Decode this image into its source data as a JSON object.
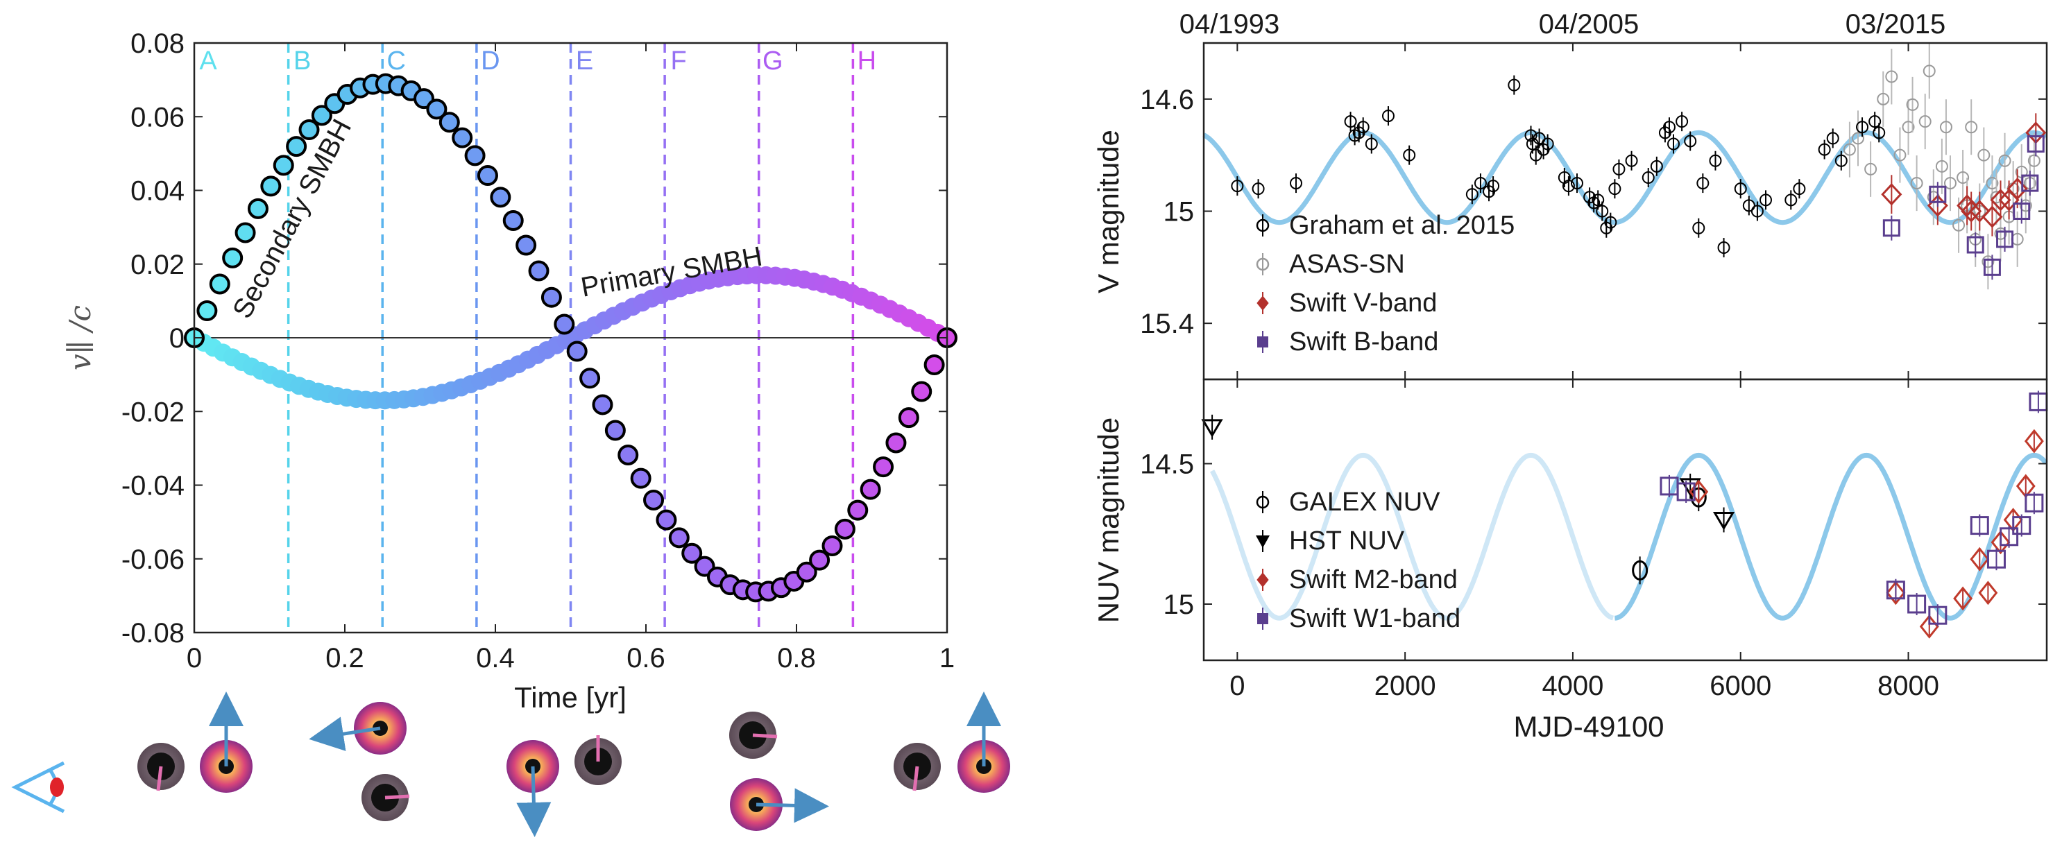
{
  "chart_data": [
    {
      "type": "scatter",
      "title": "",
      "xlabel": "Time [yr]",
      "ylabel": "v∥ /c",
      "xlim": [
        0,
        1
      ],
      "ylim": [
        -0.08,
        0.08
      ],
      "xticks": [
        "0",
        "0.2",
        "0.4",
        "0.6",
        "0.8",
        "1"
      ],
      "yticks": [
        "0.08",
        "0.06",
        "0.04",
        "0.02",
        "0",
        "-0.02",
        "-0.04",
        "-0.06",
        "-0.08"
      ],
      "phase_lines": [
        {
          "label": "A",
          "x": 0.0,
          "color": "#5ee0ee"
        },
        {
          "label": "B",
          "x": 0.125,
          "color": "#55d3ea"
        },
        {
          "label": "C",
          "x": 0.25,
          "color": "#5ab4ee"
        },
        {
          "label": "D",
          "x": 0.375,
          "color": "#6a96f0"
        },
        {
          "label": "E",
          "x": 0.5,
          "color": "#7f86f2"
        },
        {
          "label": "F",
          "x": 0.625,
          "color": "#9570f3"
        },
        {
          "label": "G",
          "x": 0.75,
          "color": "#ab5cf2"
        },
        {
          "label": "H",
          "x": 0.875,
          "color": "#c94cee"
        }
      ],
      "series": [
        {
          "name": "Secondary SMBH",
          "label": "Secondary SMBH",
          "amplitude": 0.069,
          "phase_sign": 1,
          "points": 60,
          "outlined": true
        },
        {
          "name": "Primary SMBH",
          "label": "Primary SMBH",
          "amplitude": 0.017,
          "phase_sign": -1,
          "points": 80,
          "outlined": false
        }
      ]
    },
    {
      "type": "scatter",
      "top_axis_labels": [
        "04/1993",
        "04/2005",
        "03/2015"
      ],
      "xlabel": "MJD-49100",
      "xlim": [
        -400,
        9650
      ],
      "xticks": [
        "0",
        "2000",
        "4000",
        "6000",
        "8000"
      ],
      "panels": [
        {
          "name": "V-band",
          "ylabel": "V magnitude",
          "ylim": [
            15.6,
            14.4
          ],
          "yticks": [
            "14.6",
            "15",
            "15.4"
          ],
          "model": {
            "period": 2000,
            "center": 14.88,
            "amplitude": 0.16,
            "peak_at": 3500,
            "color": "#8cc8ea"
          },
          "legend": [
            "Graham et al. 2015",
            "ASAS-SN",
            "Swift V-band",
            "Swift B-band"
          ],
          "graham": [
            [
              0,
              14.91
            ],
            [
              250,
              14.92
            ],
            [
              700,
              14.9
            ],
            [
              1350,
              14.68
            ],
            [
              1400,
              14.73
            ],
            [
              1450,
              14.72
            ],
            [
              1500,
              14.7
            ],
            [
              1600,
              14.76
            ],
            [
              1800,
              14.66
            ],
            [
              2050,
              14.8
            ],
            [
              2800,
              14.94
            ],
            [
              2900,
              14.9
            ],
            [
              3000,
              14.93
            ],
            [
              3050,
              14.91
            ],
            [
              3300,
              14.55
            ],
            [
              3500,
              14.73
            ],
            [
              3520,
              14.76
            ],
            [
              3560,
              14.8
            ],
            [
              3600,
              14.74
            ],
            [
              3650,
              14.78
            ],
            [
              3700,
              14.76
            ],
            [
              3900,
              14.88
            ],
            [
              3950,
              14.91
            ],
            [
              4050,
              14.9
            ],
            [
              4200,
              14.95
            ],
            [
              4250,
              14.97
            ],
            [
              4300,
              14.96
            ],
            [
              4350,
              15.0
            ],
            [
              4400,
              15.06
            ],
            [
              4450,
              15.04
            ],
            [
              4500,
              14.92
            ],
            [
              4550,
              14.85
            ],
            [
              4700,
              14.82
            ],
            [
              4900,
              14.88
            ],
            [
              5000,
              14.84
            ],
            [
              5100,
              14.72
            ],
            [
              5150,
              14.7
            ],
            [
              5200,
              14.76
            ],
            [
              5300,
              14.68
            ],
            [
              5400,
              14.75
            ],
            [
              5500,
              15.06
            ],
            [
              5550,
              14.9
            ],
            [
              5700,
              14.82
            ],
            [
              5800,
              15.13
            ],
            [
              6000,
              14.92
            ],
            [
              6100,
              14.98
            ],
            [
              6200,
              15.0
            ],
            [
              6300,
              14.96
            ],
            [
              6600,
              14.96
            ],
            [
              6700,
              14.92
            ],
            [
              7000,
              14.78
            ],
            [
              7100,
              14.74
            ],
            [
              7200,
              14.82
            ],
            [
              7450,
              14.7
            ],
            [
              7600,
              14.68
            ],
            [
              7650,
              14.72
            ]
          ],
          "asas_sn": [
            [
              7300,
              14.78
            ],
            [
              7400,
              14.74
            ],
            [
              7550,
              14.85
            ],
            [
              7700,
              14.6
            ],
            [
              7800,
              14.52
            ],
            [
              7900,
              14.8
            ],
            [
              8000,
              14.7
            ],
            [
              8050,
              14.62
            ],
            [
              8100,
              14.9
            ],
            [
              8200,
              14.68
            ],
            [
              8250,
              14.5
            ],
            [
              8300,
              14.95
            ],
            [
              8400,
              14.84
            ],
            [
              8450,
              14.7
            ],
            [
              8500,
              14.9
            ],
            [
              8600,
              15.05
            ],
            [
              8650,
              14.88
            ],
            [
              8700,
              14.98
            ],
            [
              8750,
              14.7
            ],
            [
              8800,
              15.1
            ],
            [
              8850,
              15.0
            ],
            [
              8900,
              14.8
            ],
            [
              8950,
              15.18
            ],
            [
              9000,
              14.9
            ],
            [
              9050,
              14.95
            ],
            [
              9100,
              15.08
            ],
            [
              9150,
              14.82
            ],
            [
              9200,
              15.02
            ],
            [
              9250,
              14.92
            ],
            [
              9300,
              15.1
            ],
            [
              9350,
              14.86
            ],
            [
              9400,
              14.98
            ],
            [
              9450,
              14.9
            ],
            [
              9500,
              14.82
            ]
          ],
          "swift_v": [
            [
              7800,
              14.94
            ],
            [
              8350,
              14.98
            ],
            [
              8700,
              14.98
            ],
            [
              8750,
              15.0
            ],
            [
              8850,
              15.0
            ],
            [
              9000,
              15.02
            ],
            [
              9100,
              14.96
            ],
            [
              9200,
              14.96
            ],
            [
              9300,
              14.92
            ],
            [
              9520,
              14.72
            ]
          ],
          "swift_b": [
            [
              7800,
              15.06
            ],
            [
              8350,
              14.94
            ],
            [
              8800,
              15.12
            ],
            [
              9000,
              15.2
            ],
            [
              9150,
              15.1
            ],
            [
              9350,
              15.0
            ],
            [
              9450,
              14.9
            ],
            [
              9520,
              14.76
            ]
          ]
        },
        {
          "name": "NUV-band",
          "ylabel": "NUV magnitude",
          "ylim": [
            15.2,
            14.2
          ],
          "yticks": [
            "14.5",
            "15"
          ],
          "model": {
            "period": 2000,
            "center": 14.76,
            "amplitude": 0.29,
            "peak_at": 5500,
            "color": "#8cc8ea"
          },
          "legend": [
            "GALEX NUV",
            "HST NUV",
            "Swift M2-band",
            "Swift W1-band"
          ],
          "galex": [
            [
              4800,
              14.88
            ],
            [
              5500,
              14.62
            ]
          ],
          "hst": [
            [
              -300,
              14.37
            ],
            [
              5400,
              14.58
            ],
            [
              5800,
              14.7
            ]
          ],
          "swift_m2": [
            [
              5500,
              14.6
            ],
            [
              7850,
              14.96
            ],
            [
              8250,
              15.08
            ],
            [
              8650,
              14.98
            ],
            [
              8850,
              14.84
            ],
            [
              8950,
              14.96
            ],
            [
              9100,
              14.78
            ],
            [
              9250,
              14.7
            ],
            [
              9400,
              14.58
            ],
            [
              9500,
              14.42
            ]
          ],
          "swift_w1": [
            [
              5150,
              14.58
            ],
            [
              5350,
              14.6
            ],
            [
              7850,
              14.95
            ],
            [
              8100,
              15.0
            ],
            [
              8350,
              15.04
            ],
            [
              8850,
              14.72
            ],
            [
              9050,
              14.84
            ],
            [
              9200,
              14.76
            ],
            [
              9350,
              14.72
            ],
            [
              9500,
              14.64
            ],
            [
              9550,
              14.28
            ]
          ]
        }
      ]
    }
  ],
  "diagram": {
    "eye_icon": "observer-eye",
    "groups": 5
  }
}
